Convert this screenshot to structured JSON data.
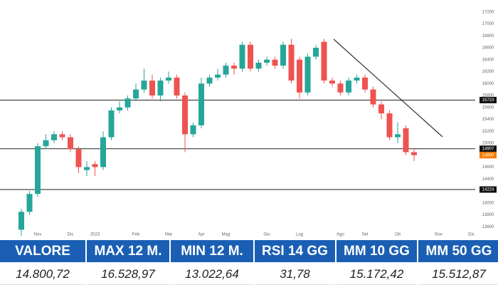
{
  "chart_data": {
    "type": "candlestick",
    "categories": [
      null,
      null,
      "Nov",
      null,
      null,
      null,
      "Dic",
      null,
      null,
      "2023",
      null,
      null,
      null,
      null,
      "Feb",
      null,
      null,
      null,
      "Mar",
      null,
      null,
      null,
      "Apr",
      null,
      null,
      "Mag",
      null,
      null,
      null,
      null,
      "Giu",
      null,
      null,
      null,
      "Lug",
      null,
      null,
      null,
      null,
      "Ago",
      null,
      null,
      "Set",
      null,
      null,
      null,
      "Ott",
      null,
      null,
      null,
      null,
      "Nov",
      null,
      null,
      null,
      "Dic"
    ],
    "open": [
      13550,
      13850,
      14150,
      14950,
      15050,
      15150,
      15100,
      14900,
      14550,
      14650,
      14600,
      15100,
      15550,
      15600,
      15750,
      15900,
      16050,
      15800,
      16050,
      16100,
      15800,
      15150,
      15300,
      16000,
      16100,
      16150,
      16300,
      16250,
      16650,
      16250,
      16350,
      16400,
      16300,
      16650,
      16400,
      15850,
      16450,
      16700,
      16050,
      16000,
      15850,
      16050,
      16100,
      15900,
      15650,
      15500,
      15100,
      15250,
      14850,
      null,
      null,
      null,
      null,
      null,
      null,
      null
    ],
    "high": [
      13900,
      14200,
      15000,
      15150,
      15200,
      15200,
      15150,
      14950,
      14700,
      14700,
      15200,
      15600,
      15700,
      15800,
      16000,
      16250,
      16150,
      16100,
      16200,
      16150,
      15850,
      15350,
      16100,
      16150,
      16250,
      16350,
      16350,
      16700,
      16700,
      16400,
      16450,
      16450,
      16700,
      16750,
      16450,
      16500,
      16650,
      16750,
      16100,
      16050,
      16100,
      16150,
      16150,
      15950,
      15700,
      15550,
      15350,
      15300,
      14900,
      null,
      null,
      null,
      null,
      null,
      null,
      null
    ],
    "low": [
      13450,
      13800,
      14100,
      14900,
      15000,
      15050,
      14850,
      14500,
      14450,
      14450,
      14550,
      15050,
      15500,
      15550,
      15700,
      15850,
      15750,
      15700,
      16000,
      15750,
      14850,
      15100,
      15250,
      15950,
      16050,
      16100,
      16150,
      16200,
      16200,
      16200,
      16300,
      16250,
      16250,
      16000,
      15750,
      15800,
      16400,
      16000,
      15950,
      15800,
      15800,
      16000,
      15850,
      15600,
      15400,
      15050,
      15000,
      14800,
      14700,
      null,
      null,
      null,
      null,
      null,
      null,
      null
    ],
    "close": [
      13850,
      14150,
      14950,
      15050,
      15150,
      15100,
      14900,
      14600,
      14600,
      14600,
      15100,
      15550,
      15600,
      15750,
      15900,
      16050,
      15800,
      16050,
      16100,
      15800,
      15150,
      15300,
      16000,
      16100,
      16150,
      16300,
      16250,
      16650,
      16250,
      16350,
      16400,
      16300,
      16650,
      16050,
      15850,
      16450,
      16600,
      16050,
      16000,
      15850,
      16050,
      16100,
      15900,
      15650,
      15500,
      15100,
      15150,
      14850,
      14800,
      null,
      null,
      null,
      null,
      null,
      null,
      null
    ],
    "up_color": "#26a69a",
    "down_color": "#ef5350",
    "ylim": [
      13400,
      17400
    ],
    "yticks": [
      13600,
      13800,
      14000,
      14200,
      14400,
      14600,
      14800,
      15000,
      15200,
      15400,
      15600,
      15800,
      16000,
      16200,
      16400,
      16600,
      16800,
      17000,
      17200
    ],
    "levels": [
      15723,
      14907,
      14224
    ],
    "last_price": 14800,
    "grid": false
  },
  "table": {
    "header": [
      "VALORE",
      "MAX 12 M.",
      "MIN 12 M.",
      "RSI 14 GG",
      "MM 10 GG",
      "MM 50 GG"
    ],
    "rows": [
      [
        "14.800,72",
        "16.528,97",
        "13.022,64",
        "31,78",
        "15.172,42",
        "15.512,87"
      ]
    ]
  }
}
